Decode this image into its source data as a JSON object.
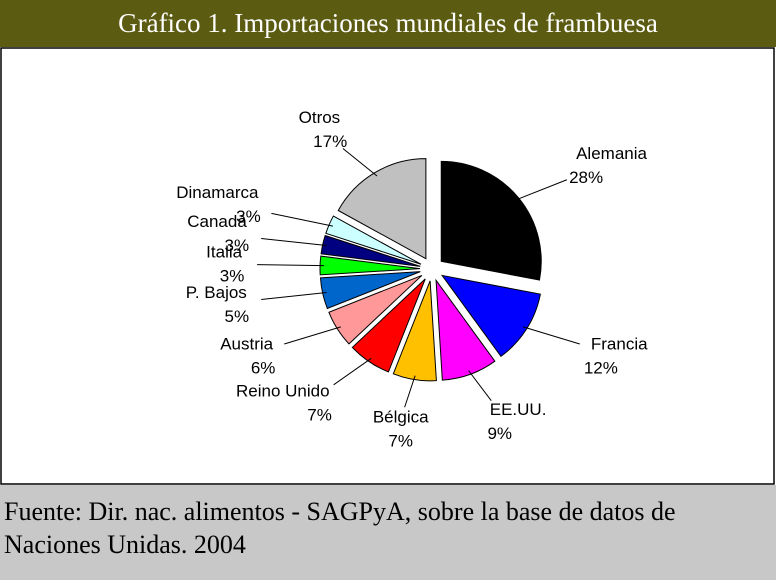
{
  "chart_data": {
    "type": "pie",
    "title": "Gráfico 1. Importaciones mundiales de frambuesa",
    "categories": [
      "Alemania",
      "Francia",
      "EE.UU.",
      "Bélgica",
      "Reino Unido",
      "Austria",
      "P. Bajos",
      "Italia",
      "Canadá",
      "Dinamarca",
      "Otros"
    ],
    "values": [
      28,
      12,
      9,
      7,
      7,
      6,
      5,
      3,
      3,
      3,
      17
    ],
    "value_labels": [
      "28%",
      "12%",
      "9%",
      "7%",
      "7%",
      "6%",
      "5%",
      "3%",
      "3%",
      "3%",
      "17%"
    ],
    "colors": [
      "#000000",
      "#0000ff",
      "#ff00ff",
      "#ffc000",
      "#ff0000",
      "#ff9999",
      "#0066cc",
      "#00ff00",
      "#000080",
      "#ccffff",
      "#c0c0c0"
    ],
    "source": "Fuente: Dir. nac. alimentos - SAGPyA, sobre la base de datos de  Naciones Unidas. 2004"
  }
}
